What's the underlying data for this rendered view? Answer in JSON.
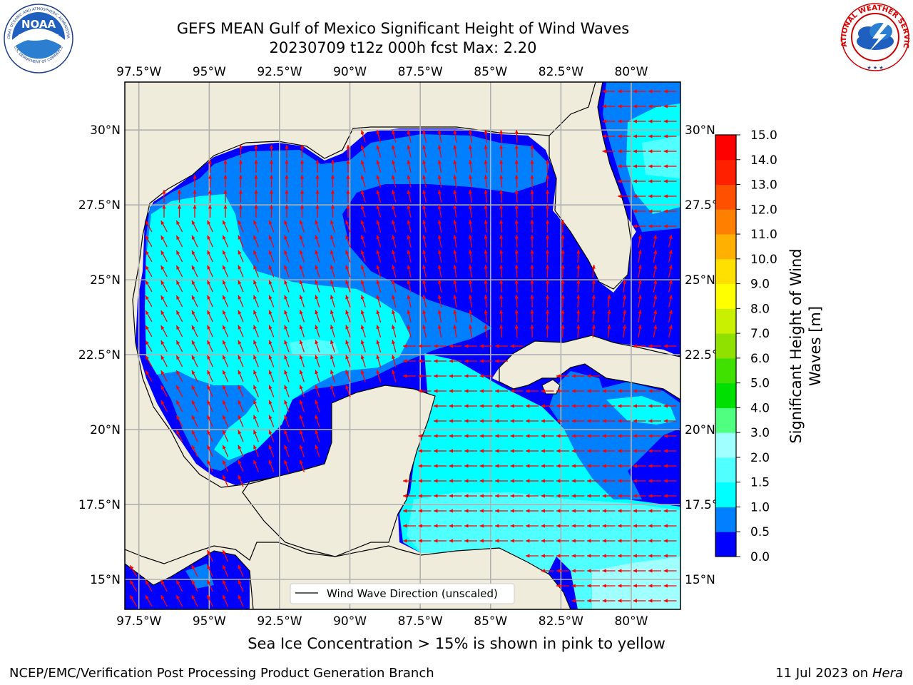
{
  "header": {
    "title_line1": "GEFS MEAN Gulf of Mexico Significant Height of Wind Waves",
    "title_line2": "20230709 t12z 000h fcst   Max: 2.20"
  },
  "logos": {
    "noaa": {
      "text": "NOAA",
      "icon": "noaa-logo-icon",
      "ring_top": "NATIONAL OCEANIC AND ATMOSPHERIC ADMINISTRATION",
      "ring_bottom": "U.S. DEPARTMENT OF COMMERCE"
    },
    "nws": {
      "icon": "nws-logo-icon",
      "ring_text": "NATIONAL WEATHER SERVICE"
    }
  },
  "map": {
    "lon_labels": [
      "97.5°W",
      "95°W",
      "92.5°W",
      "90°W",
      "87.5°W",
      "85°W",
      "82.5°W",
      "80°W"
    ],
    "lat_labels": [
      "30°N",
      "27.5°N",
      "25°N",
      "22.5°N",
      "20°N",
      "17.5°N",
      "15°N"
    ],
    "lon_values": [
      -97.5,
      -95,
      -92.5,
      -90,
      -87.5,
      -85,
      -82.5,
      -80
    ],
    "lat_values": [
      30,
      27.5,
      25,
      22.5,
      20,
      17.5,
      15
    ],
    "lon_range": [
      -98,
      -78.25
    ],
    "lat_range": [
      14,
      31.6
    ],
    "legend_label": "Wind Wave Direction (unscaled)",
    "colors": {
      "land": "#efecdc",
      "coast": "#000000",
      "grid": "#b0b0b0",
      "arrow": "#ff0000"
    }
  },
  "colorbar": {
    "label_line1": "Significant Height of Wind",
    "label_line2": "Waves [m]",
    "tick_labels": [
      "0.0",
      "0.5",
      "1.0",
      "1.5",
      "2.0",
      "3.0",
      "4.0",
      "5.0",
      "6.0",
      "7.0",
      "8.0",
      "9.0",
      "10.0",
      "11.0",
      "12.0",
      "13.0",
      "14.0",
      "15.0"
    ],
    "colors": [
      "#0000ff",
      "#0080ff",
      "#00ffff",
      "#50ffff",
      "#a0ffff",
      "#50ff80",
      "#00e000",
      "#40e000",
      "#90e000",
      "#c8f000",
      "#ffff00",
      "#ffe000",
      "#ffb000",
      "#ff8000",
      "#ff5000",
      "#ff2000",
      "#ff0000"
    ]
  },
  "ice_note": "Sea Ice Concentration > 15% is shown in pink to yellow",
  "footer": {
    "left": "NCEP/EMC/Verification Post Processing Product Generation Branch",
    "right_date": "11 Jul 2023 on ",
    "right_host": "Hera"
  }
}
